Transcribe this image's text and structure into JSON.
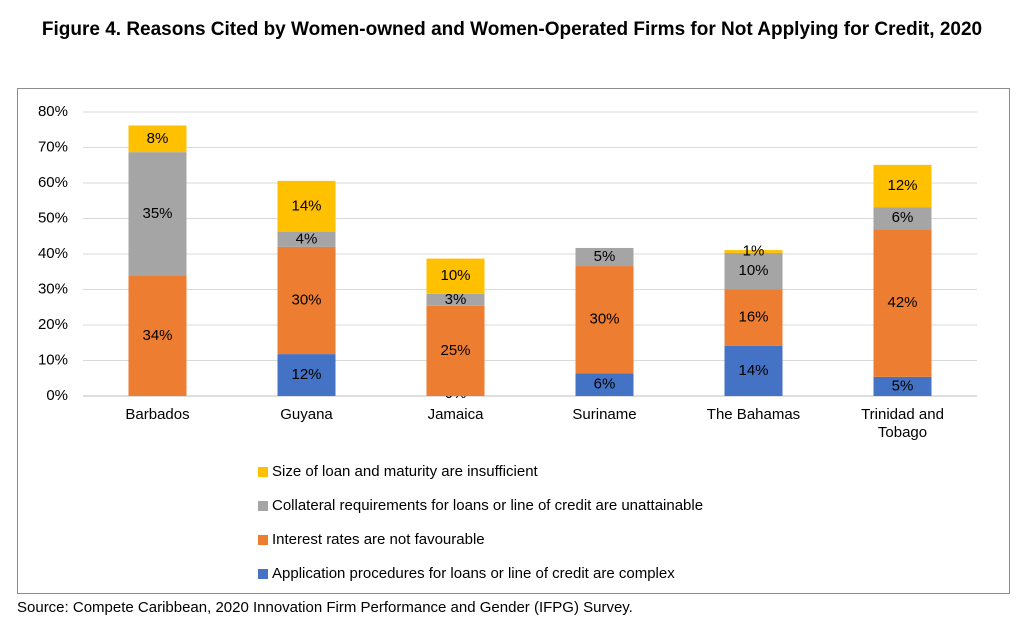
{
  "chart_data": {
    "type": "stacked_bar",
    "title": "Figure 4. Reasons Cited by Women-owned and Women-Operated Firms for Not Applying for Credit, 2020",
    "source": "Source: Compete Caribbean, 2020 Innovation Firm Performance and Gender (IFPG) Survey.",
    "categories": [
      "Barbados",
      "Guyana",
      "Jamaica",
      "Suriname",
      "The Bahamas",
      "Trinidad and Tobago"
    ],
    "series": [
      {
        "name": "Application procedures for loans or line of credit are complex",
        "color": "#4472c4",
        "values": [
          0,
          11.8,
          0,
          6.4,
          14.1,
          5.4
        ],
        "value_labels": [
          null,
          "12%",
          "0%",
          "6%",
          "14%",
          "5%"
        ]
      },
      {
        "name": "Interest rates are not favourable",
        "color": "#ed7d31",
        "values": [
          33.8,
          30.2,
          25.4,
          30.2,
          16.0,
          41.6
        ],
        "value_labels": [
          "34%",
          "30%",
          "25%",
          "30%",
          "16%",
          "42%"
        ]
      },
      {
        "name": "Collateral requirements for loans or line of credit are unattainable",
        "color": "#a5a5a5",
        "values": [
          34.9,
          4.2,
          3.4,
          5.1,
          10.2,
          6.2
        ],
        "value_labels": [
          "35%",
          "4%",
          "3%",
          "5%",
          "10%",
          "6%"
        ]
      },
      {
        "name": "Size of loan and maturity are insufficient",
        "color": "#ffc000",
        "values": [
          7.5,
          14.4,
          9.9,
          0,
          0.8,
          11.9
        ],
        "value_labels": [
          "8%",
          "14%",
          "10%",
          null,
          "1%",
          "12%"
        ]
      }
    ],
    "ylim": [
      0,
      80
    ],
    "yticks": [
      {
        "value": 0,
        "label": "0%"
      },
      {
        "value": 10,
        "label": "10%"
      },
      {
        "value": 20,
        "label": "20%"
      },
      {
        "value": 30,
        "label": "30%"
      },
      {
        "value": 40,
        "label": "40%"
      },
      {
        "value": 50,
        "label": "50%"
      },
      {
        "value": 60,
        "label": "60%"
      },
      {
        "value": 70,
        "label": "70%"
      },
      {
        "value": 80,
        "label": "80%"
      }
    ],
    "grid": true,
    "legend": "bottom"
  }
}
